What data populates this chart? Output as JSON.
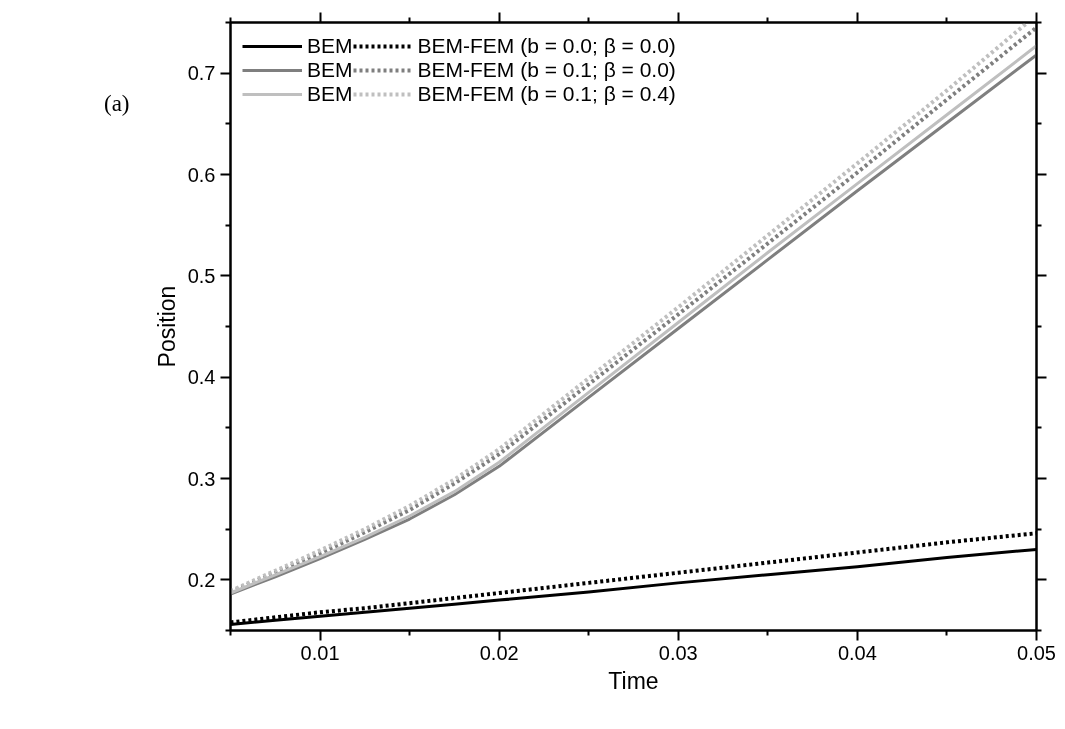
{
  "chart_data": {
    "type": "line",
    "xlabel": "Time",
    "ylabel": "Position",
    "annotations": [
      "(a)"
    ],
    "x": [
      0.005,
      0.0075,
      0.01,
      0.0125,
      0.015,
      0.0175,
      0.02,
      0.025,
      0.03,
      0.035,
      0.04,
      0.045,
      0.05
    ],
    "series": [
      {
        "name": "BEM",
        "color": "#000000",
        "line_style": "solid",
        "values": [
          0.156,
          0.16,
          0.164,
          0.168,
          0.172,
          0.176,
          0.18,
          0.188,
          0.197,
          0.205,
          0.213,
          0.222,
          0.23
        ]
      },
      {
        "name": "BEM-FEM (b = 0.0; β = 0.0)",
        "color": "#000000",
        "line_style": "dotted",
        "values": [
          0.158,
          0.163,
          0.168,
          0.172,
          0.177,
          0.182,
          0.187,
          0.197,
          0.207,
          0.217,
          0.227,
          0.237,
          0.246
        ]
      },
      {
        "name": "BEM",
        "color": "#7f7f7f",
        "line_style": "solid",
        "values": [
          0.186,
          0.203,
          0.221,
          0.24,
          0.26,
          0.284,
          0.312,
          0.38,
          0.448,
          0.516,
          0.584,
          0.651,
          0.718
        ]
      },
      {
        "name": "BEM-FEM (b = 0.1; β = 0.0)",
        "color": "#7f7f7f",
        "line_style": "dotted",
        "values": [
          0.188,
          0.207,
          0.226,
          0.247,
          0.269,
          0.295,
          0.324,
          0.393,
          0.462,
          0.532,
          0.602,
          0.674,
          0.745
        ]
      },
      {
        "name": "BEM",
        "color": "#bfbfbf",
        "line_style": "solid",
        "values": [
          0.187,
          0.205,
          0.223,
          0.242,
          0.263,
          0.287,
          0.316,
          0.385,
          0.454,
          0.523,
          0.591,
          0.659,
          0.727
        ]
      },
      {
        "name": "BEM-FEM (b = 0.1; β = 0.4)",
        "color": "#bfbfbf",
        "line_style": "dotted",
        "x": [
          0.005,
          0.0075,
          0.01,
          0.0125,
          0.015,
          0.0175,
          0.02,
          0.025,
          0.03,
          0.035,
          0.04,
          0.045,
          0.0495
        ],
        "values": [
          0.189,
          0.209,
          0.229,
          0.25,
          0.273,
          0.299,
          0.329,
          0.399,
          0.469,
          0.54,
          0.611,
          0.683,
          0.75
        ]
      }
    ],
    "xlim": [
      0.005,
      0.05
    ],
    "xticks": [
      {
        "value": 0.005,
        "label": null
      },
      0.01,
      {
        "value": 0.015,
        "label": null
      },
      0.02,
      {
        "value": 0.025,
        "label": null
      },
      0.03,
      {
        "value": 0.035,
        "label": null
      },
      0.04,
      {
        "value": 0.045,
        "label": null
      },
      0.05
    ],
    "ylim": [
      0.15,
      0.75
    ],
    "yticks": [
      {
        "value": 0.15,
        "label": null
      },
      0.2,
      {
        "value": 0.25,
        "label": null
      },
      0.3,
      {
        "value": 0.35,
        "label": null
      },
      0.4,
      {
        "value": 0.45,
        "label": null
      },
      0.5,
      {
        "value": 0.55,
        "label": null
      },
      0.6,
      {
        "value": 0.65,
        "label": null
      },
      0.7,
      {
        "value": 0.75,
        "label": null
      }
    ],
    "grid": false,
    "legend": "top left"
  }
}
